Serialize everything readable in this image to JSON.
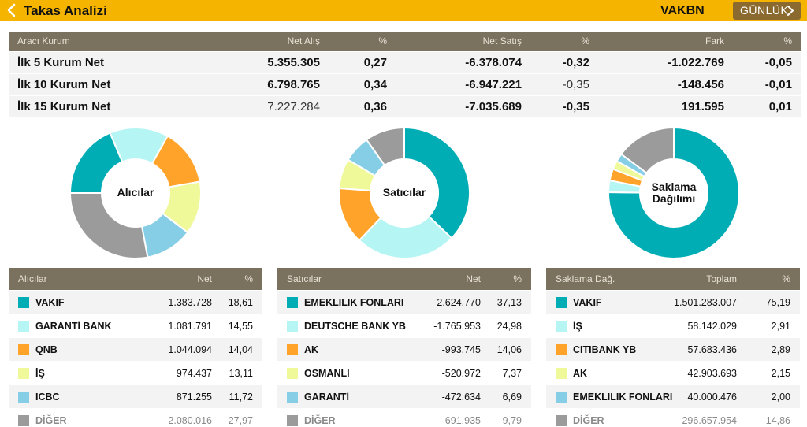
{
  "header": {
    "title": "Takas Analizi",
    "symbol": "VAKBN",
    "period_label": "GÜNLÜK"
  },
  "colors": {
    "accent": "#f5b400",
    "table_header": "#7b715f",
    "teal": "#00adb5",
    "light_cyan": "#b5f5f4",
    "orange": "#ffa32b",
    "light_yellow": "#f0f99a",
    "sky": "#86cee6",
    "grey": "#9b9b9b"
  },
  "summary": {
    "headers": [
      "Aracı Kurum",
      "Net Alış",
      "%",
      "Net Satış",
      "%",
      "Fark",
      "%"
    ],
    "rows": [
      {
        "label": "İlk 5 Kurum Net",
        "net_alis": "5.355.305",
        "alis_pct": "0,27",
        "net_satis": "-6.378.074",
        "satis_pct": "-0,32",
        "fark": "-1.022.769",
        "fark_pct": "-0,05"
      },
      {
        "label": "İlk 10 Kurum Net",
        "net_alis": "6.798.765",
        "alis_pct": "0,34",
        "net_satis": "-6.947.221",
        "satis_pct": "-0,35",
        "fark": "-148.456",
        "fark_pct": "-0,01"
      },
      {
        "label": "İlk 15 Kurum Net",
        "net_alis": "7.227.284",
        "alis_pct": "0,36",
        "net_satis": "-7.035.689",
        "satis_pct": "-0,35",
        "fark": "191.595",
        "fark_pct": "0,01"
      }
    ]
  },
  "chart_data": [
    {
      "type": "pie",
      "title": "Alıcılar",
      "categories": [
        "VAKIF",
        "GARANTİ BANK",
        "QNB",
        "İŞ",
        "ICBC",
        "DİĞER"
      ],
      "values": [
        18.61,
        14.55,
        14.04,
        13.11,
        11.72,
        27.97
      ],
      "colors": [
        "#00adb5",
        "#b5f5f4",
        "#ffa32b",
        "#f0f99a",
        "#86cee6",
        "#9b9b9b"
      ]
    },
    {
      "type": "pie",
      "title": "Satıcılar",
      "categories": [
        "EMEKLILIK FONLARI",
        "DEUTSCHE BANK YB",
        "AK",
        "OSMANLI",
        "GARANTİ",
        "DİĞER"
      ],
      "values": [
        37.13,
        24.98,
        14.06,
        7.37,
        6.69,
        9.79
      ],
      "colors": [
        "#00adb5",
        "#b5f5f4",
        "#ffa32b",
        "#f0f99a",
        "#86cee6",
        "#9b9b9b"
      ]
    },
    {
      "type": "pie",
      "title": "Saklama Dağılımı",
      "categories": [
        "VAKIF",
        "İŞ",
        "CITIBANK YB",
        "AK",
        "EMEKLILIK FONLARI",
        "DİĞER"
      ],
      "values": [
        75.19,
        2.91,
        2.89,
        2.15,
        2.0,
        14.86
      ],
      "colors": [
        "#00adb5",
        "#b5f5f4",
        "#ffa32b",
        "#f0f99a",
        "#86cee6",
        "#9b9b9b"
      ]
    }
  ],
  "chart_labels": {
    "buyers": "Alıcılar",
    "sellers": "Satıcılar",
    "custody_line1": "Saklama",
    "custody_line2": "Dağılımı"
  },
  "buyers": {
    "headers": [
      "Alıcılar",
      "Net",
      "%"
    ],
    "rows": [
      {
        "name": "VAKIF",
        "net": "1.383.728",
        "pct": "18,61"
      },
      {
        "name": "GARANTİ BANK",
        "net": "1.081.791",
        "pct": "14,55"
      },
      {
        "name": "QNB",
        "net": "1.044.094",
        "pct": "14,04"
      },
      {
        "name": "İŞ",
        "net": "974.437",
        "pct": "13,11"
      },
      {
        "name": "ICBC",
        "net": "871.255",
        "pct": "11,72"
      },
      {
        "name": "DİĞER",
        "net": "2.080.016",
        "pct": "27,97"
      }
    ]
  },
  "sellers": {
    "headers": [
      "Satıcılar",
      "Net",
      "%"
    ],
    "rows": [
      {
        "name": "EMEKLILIK FONLARI",
        "net": "-2.624.770",
        "pct": "37,13"
      },
      {
        "name": "DEUTSCHE BANK YB",
        "net": "-1.765.953",
        "pct": "24,98"
      },
      {
        "name": "AK",
        "net": "-993.745",
        "pct": "14,06"
      },
      {
        "name": "OSMANLI",
        "net": "-520.972",
        "pct": "7,37"
      },
      {
        "name": "GARANTİ",
        "net": "-472.634",
        "pct": "6,69"
      },
      {
        "name": "DİĞER",
        "net": "-691.935",
        "pct": "9,79"
      }
    ]
  },
  "custody": {
    "headers": [
      "Saklama Dağ.",
      "Toplam",
      "%"
    ],
    "rows": [
      {
        "name": "VAKIF",
        "net": "1.501.283.007",
        "pct": "75,19"
      },
      {
        "name": "İŞ",
        "net": "58.142.029",
        "pct": "2,91"
      },
      {
        "name": "CITIBANK YB",
        "net": "57.683.436",
        "pct": "2,89"
      },
      {
        "name": "AK",
        "net": "42.903.693",
        "pct": "2,15"
      },
      {
        "name": "EMEKLILIK FONLARI",
        "net": "40.000.476",
        "pct": "2,00"
      },
      {
        "name": "DİĞER",
        "net": "296.657.954",
        "pct": "14,86"
      }
    ]
  }
}
